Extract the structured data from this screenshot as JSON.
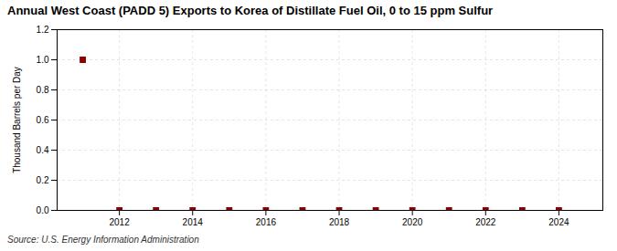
{
  "chart_data": {
    "type": "scatter",
    "title": "Annual West Coast (PADD 5) Exports to Korea of Distillate Fuel Oil, 0 to 15 ppm Sulfur",
    "ylabel": "Thousand Barrels per Day",
    "annotations": [
      "Source: U.S. Energy Information Administration"
    ],
    "x": [
      2011,
      2012,
      2013,
      2014,
      2015,
      2016,
      2017,
      2018,
      2019,
      2020,
      2021,
      2022,
      2023,
      2024
    ],
    "values": [
      1.0,
      0.0,
      0.0,
      0.0,
      0.0,
      0.0,
      0.0,
      0.0,
      0.0,
      0.0,
      0.0,
      0.0,
      0.0,
      0.0
    ],
    "color": "#8b0000",
    "marker": "square",
    "xlim": [
      2010.3,
      2025.2
    ],
    "ylim": [
      0.0,
      1.2
    ],
    "xticks": [
      2012,
      2014,
      2016,
      2018,
      2020,
      2022,
      2024
    ],
    "yticks": [
      {
        "value": 0.0,
        "label": "0.0"
      },
      0.2,
      0.4,
      0.6,
      0.8,
      {
        "value": 1.0,
        "label": "1.0"
      },
      1.2
    ],
    "grid": true
  }
}
